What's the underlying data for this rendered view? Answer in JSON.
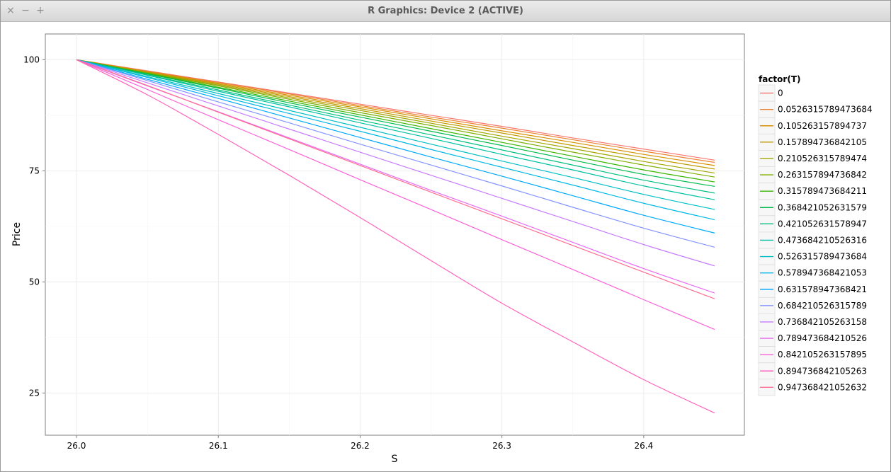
{
  "window": {
    "title": "R Graphics: Device 2 (ACTIVE)",
    "close_symbol": "×",
    "minimize_symbol": "−",
    "maximize_symbol": "+"
  },
  "chart_data": {
    "type": "line",
    "xlabel": "S",
    "ylabel": "Price",
    "xlim": [
      25.978,
      26.471
    ],
    "ylim": [
      15.5,
      105.8
    ],
    "x_ticks": [
      26.0,
      26.1,
      26.2,
      26.3,
      26.4
    ],
    "x_tick_labels": [
      "26.0",
      "26.1",
      "26.2",
      "26.3",
      "26.4"
    ],
    "y_ticks": [
      25,
      50,
      75,
      100
    ],
    "y_tick_labels": [
      "25",
      "50",
      "75",
      "100"
    ],
    "grid": true,
    "legend_title": "factor(T)",
    "legend_position": "right",
    "x": [
      26.0,
      26.05,
      26.1,
      26.15,
      26.2,
      26.25,
      26.3,
      26.35,
      26.4,
      26.45
    ],
    "series": [
      {
        "name": "0",
        "color": "#F8766D",
        "values": [
          100.0,
          97.5,
          95.0,
          92.5,
          90.0,
          87.5,
          85.0,
          82.4,
          79.9,
          77.4
        ]
      },
      {
        "name": "0.0526315789473684",
        "color": "#EA8331",
        "values": [
          100.0,
          97.4,
          94.9,
          92.3,
          89.7,
          87.1,
          84.6,
          82.0,
          79.4,
          76.9
        ]
      },
      {
        "name": "0.105263157894737",
        "color": "#D89000",
        "values": [
          100.0,
          97.3,
          94.7,
          92.0,
          89.4,
          86.7,
          84.0,
          81.4,
          78.7,
          76.2
        ]
      },
      {
        "name": "0.157894736842105",
        "color": "#C09B00",
        "values": [
          100.0,
          97.2,
          94.5,
          91.7,
          89.0,
          86.2,
          83.5,
          80.7,
          78.0,
          75.4
        ]
      },
      {
        "name": "0.210526315789474",
        "color": "#A3A500",
        "values": [
          100.0,
          97.1,
          94.3,
          91.4,
          88.6,
          85.7,
          82.8,
          80.0,
          77.1,
          74.5
        ]
      },
      {
        "name": "0.263157894736842",
        "color": "#7CAE00",
        "values": [
          100.0,
          97.0,
          94.1,
          91.1,
          88.1,
          85.2,
          82.2,
          79.2,
          76.3,
          73.6
        ]
      },
      {
        "name": "0.315789473684211",
        "color": "#39B600",
        "values": [
          100.0,
          96.9,
          93.8,
          90.7,
          87.6,
          84.5,
          81.4,
          78.3,
          75.2,
          72.5
        ]
      },
      {
        "name": "0.368421052631579",
        "color": "#00BB4E",
        "values": [
          100.0,
          96.8,
          93.6,
          90.3,
          87.1,
          83.9,
          80.7,
          77.4,
          74.2,
          71.5
        ]
      },
      {
        "name": "0.421052631578947",
        "color": "#00BF7D",
        "values": [
          100.0,
          96.6,
          93.2,
          89.8,
          86.4,
          83.1,
          79.7,
          76.3,
          72.9,
          70.0
        ]
      },
      {
        "name": "0.473684210526316",
        "color": "#00C1A3",
        "values": [
          100.0,
          96.5,
          92.9,
          89.4,
          85.8,
          82.3,
          78.7,
          75.2,
          71.6,
          68.5
        ]
      },
      {
        "name": "0.526315789473684",
        "color": "#00BFC4",
        "values": [
          100.0,
          96.2,
          92.4,
          88.6,
          84.8,
          81.0,
          77.2,
          73.5,
          69.7,
          66.3
        ]
      },
      {
        "name": "0.578947368421053",
        "color": "#00B8E5",
        "values": [
          100.0,
          96.0,
          91.9,
          87.9,
          83.9,
          79.8,
          75.8,
          71.8,
          67.7,
          64.0
        ]
      },
      {
        "name": "0.631578947368421",
        "color": "#00A9FF",
        "values": [
          100.0,
          95.6,
          91.3,
          86.9,
          82.5,
          78.1,
          73.8,
          69.4,
          65.0,
          61.0
        ]
      },
      {
        "name": "0.684210526315789",
        "color": "#8494FF",
        "values": [
          100.0,
          95.3,
          90.5,
          85.8,
          81.0,
          76.3,
          71.6,
          66.8,
          62.1,
          57.8
        ]
      },
      {
        "name": "0.736842105263158",
        "color": "#C77CFF",
        "values": [
          100.0,
          94.8,
          89.6,
          84.4,
          79.2,
          74.0,
          68.8,
          63.6,
          58.4,
          53.6
        ]
      },
      {
        "name": "0.789473684210526",
        "color": "#E76BF3",
        "values": [
          100.0,
          94.1,
          88.3,
          82.4,
          76.5,
          70.6,
          64.8,
          58.9,
          53.0,
          47.5
        ]
      },
      {
        "name": "0.842105263157895",
        "color": "#FA62DB",
        "values": [
          100.0,
          93.3,
          86.5,
          79.8,
          73.0,
          66.3,
          59.5,
          52.8,
          46.0,
          39.3
        ]
      },
      {
        "name": "0.894736842105263",
        "color": "#FF62BC",
        "values": [
          100.0,
          92.1,
          83.2,
          74.0,
          64.5,
          54.8,
          45.2,
          36.5,
          28.0,
          20.5
        ]
      },
      {
        "name": "0.947368421052632",
        "color": "#FF6C91",
        "values": [
          100.0,
          94.2,
          88.2,
          82.2,
          76.2,
          70.2,
          64.2,
          58.2,
          52.2,
          46.2
        ]
      }
    ]
  }
}
